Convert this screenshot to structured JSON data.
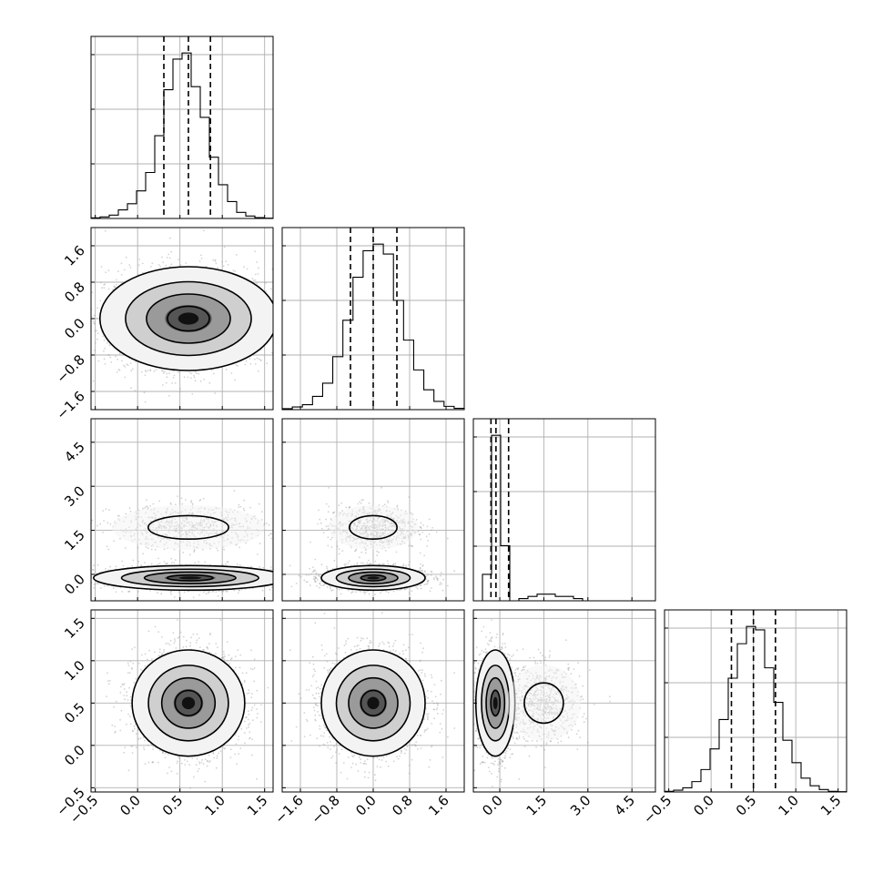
{
  "chart_data": {
    "type": "corner",
    "parameters": [
      {
        "range": [
          -0.55,
          1.6
        ],
        "ticks": [
          -0.5,
          0.0,
          0.5,
          1.0,
          1.5
        ],
        "tick_labels": [
          "−0.5",
          "0.0",
          "0.5",
          "1.0",
          "1.5"
        ],
        "quantiles": [
          0.31,
          0.6,
          0.86
        ],
        "hist_edges": [
          -0.55,
          1.6
        ],
        "hist_counts": [
          2,
          5,
          11,
          28,
          48,
          90,
          150,
          270,
          420,
          520,
          540,
          430,
          330,
          200,
          110,
          55,
          20,
          8,
          3,
          1
        ]
      },
      {
        "range": [
          -2.0,
          2.0
        ],
        "ticks": [
          -1.6,
          -0.8,
          0.0,
          0.8,
          1.6
        ],
        "tick_labels": [
          "−1.6",
          "−0.8",
          "0.0",
          "0.8",
          "1.6"
        ],
        "quantiles": [
          -0.5,
          0.0,
          0.52
        ],
        "hist_edges": [
          -2.0,
          2.0
        ],
        "hist_counts": [
          3,
          8,
          15,
          40,
          80,
          160,
          270,
          400,
          480,
          500,
          470,
          330,
          210,
          120,
          60,
          25,
          10,
          4
        ]
      },
      {
        "range": [
          -0.9,
          5.3
        ],
        "ticks": [
          0.0,
          1.5,
          3.0,
          4.5
        ],
        "tick_labels": [
          "0.0",
          "1.5",
          "3.0",
          "4.5"
        ],
        "quantiles": [
          -0.3,
          -0.13,
          0.3
        ],
        "hist_edges": [
          -0.9,
          5.3
        ],
        "hist_counts": [
          0,
          12,
          75,
          25,
          0,
          1,
          2,
          3,
          3,
          2,
          2,
          1,
          0,
          0,
          0,
          0,
          0,
          0,
          0,
          0
        ]
      },
      {
        "range": [
          -0.55,
          1.6
        ],
        "ticks": [
          -0.5,
          0.0,
          0.5,
          1.0,
          1.5
        ],
        "tick_labels": [
          "−0.5",
          "0.0",
          "0.5",
          "1.0",
          "1.5"
        ],
        "quantiles": [
          0.24,
          0.5,
          0.76
        ],
        "hist_edges": [
          -0.55,
          1.6
        ],
        "hist_counts": [
          2,
          5,
          12,
          30,
          65,
          125,
          210,
          330,
          430,
          480,
          470,
          360,
          260,
          150,
          85,
          40,
          18,
          7,
          2,
          1
        ]
      }
    ],
    "pairs": [
      {
        "row": 1,
        "col": 0,
        "centers": [
          [
            0.6,
            0.0,
            0.55,
            0.6
          ]
        ],
        "cluster_counts": [
          2600
        ]
      },
      {
        "row": 2,
        "col": 0,
        "centers": [
          [
            0.62,
            -0.12,
            0.6,
            0.22
          ],
          [
            0.6,
            1.6,
            0.5,
            0.42
          ]
        ],
        "cluster_counts": [
          1900,
          700
        ]
      },
      {
        "row": 2,
        "col": 1,
        "centers": [
          [
            0.0,
            -0.12,
            0.6,
            0.22
          ],
          [
            0.0,
            1.6,
            0.55,
            0.42
          ]
        ],
        "cluster_counts": [
          1900,
          700
        ]
      },
      {
        "row": 3,
        "col": 0,
        "centers": [
          [
            0.6,
            0.5,
            0.35,
            0.33
          ]
        ],
        "cluster_counts": [
          2600
        ]
      },
      {
        "row": 3,
        "col": 1,
        "centers": [
          [
            0.0,
            0.5,
            0.6,
            0.33
          ]
        ],
        "cluster_counts": [
          2600
        ]
      },
      {
        "row": 3,
        "col": 2,
        "centers": [
          [
            -0.15,
            0.5,
            0.35,
            0.33
          ],
          [
            1.5,
            0.5,
            0.7,
            0.25
          ]
        ],
        "cluster_counts": [
          1800,
          700
        ]
      }
    ]
  }
}
